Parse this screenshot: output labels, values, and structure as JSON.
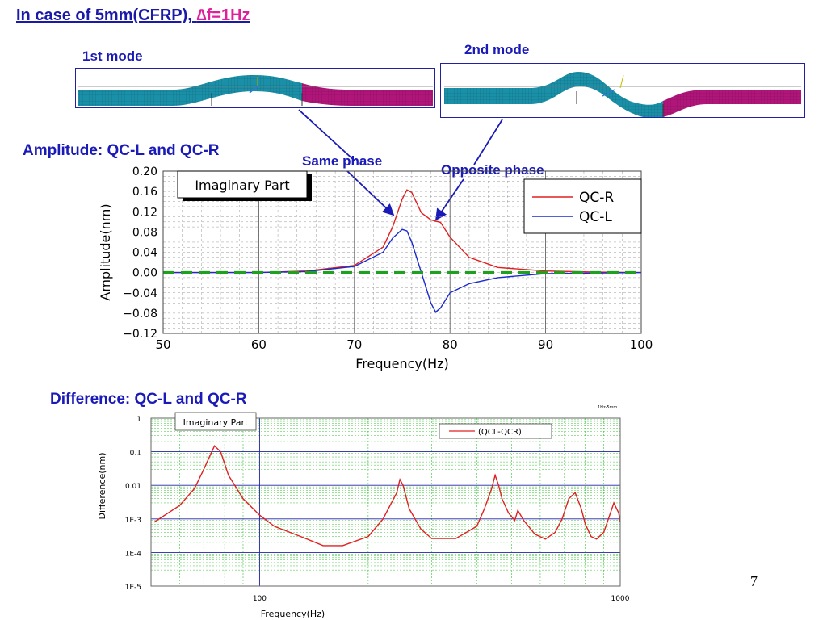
{
  "slide": {
    "title_prefix": "In case of 5mm(CFRP), ",
    "title_accent": "∆f=1Hz",
    "mode1_label": "1st mode",
    "mode2_label": "2nd mode",
    "section1": "Amplitude: QC-L and QC-R",
    "section2": "Difference: QC-L and QC-R",
    "same_phase": "Same phase",
    "opposite_phase": "Opposite phase",
    "page_number": "7",
    "colors": {
      "title": "#1a1aa8",
      "accent": "#e0209a",
      "beam_cyan": "#1a90a8",
      "beam_magenta": "#b0167a"
    }
  },
  "chart_data": [
    {
      "type": "line",
      "title": "Imaginary Part",
      "xlabel": "Frequency(Hz)",
      "ylabel": "Amplitude(nm)",
      "xlim": [
        50,
        100
      ],
      "ylim": [
        -0.12,
        0.2
      ],
      "xticks": [
        "50",
        "60",
        "70",
        "80",
        "90",
        "100"
      ],
      "yticks": [
        "0.20",
        "0.16",
        "0.12",
        "0.08",
        "0.04",
        "0.00",
        "−0.04",
        "−0.08",
        "−0.12"
      ],
      "grid": true,
      "legend_position": "top-right",
      "series": [
        {
          "name": "QC-R",
          "color": "#e02020",
          "x": [
            50,
            55,
            60,
            65,
            70,
            73,
            74,
            75,
            75.5,
            76,
            77,
            78,
            79,
            80,
            82,
            85,
            90,
            95,
            100
          ],
          "y": [
            0,
            0,
            0,
            0.003,
            0.014,
            0.05,
            0.09,
            0.145,
            0.163,
            0.158,
            0.118,
            0.104,
            0.099,
            0.07,
            0.03,
            0.01,
            0.003,
            0.001,
            0
          ]
        },
        {
          "name": "QC-L",
          "color": "#1a2ad0",
          "x": [
            50,
            60,
            65,
            70,
            73,
            74,
            75,
            75.5,
            76,
            77,
            78,
            78.5,
            79,
            80,
            82,
            85,
            90,
            100
          ],
          "y": [
            0,
            0,
            0.002,
            0.012,
            0.04,
            0.068,
            0.085,
            0.082,
            0.06,
            0.0,
            -0.06,
            -0.078,
            -0.07,
            -0.04,
            -0.022,
            -0.01,
            -0.002,
            0
          ]
        },
        {
          "name": "",
          "color": "#20a020",
          "dashed": true,
          "x": [
            50,
            100
          ],
          "y": [
            0,
            0
          ]
        }
      ]
    },
    {
      "type": "line",
      "title": "Imaginary Part",
      "corner_label": "1Hz-5mm",
      "xlabel": "Frequency(Hz)",
      "ylabel": "Difference(nm)",
      "xscale": "log",
      "yscale": "log",
      "xlim": [
        50,
        1000
      ],
      "ylim": [
        1e-05,
        1
      ],
      "xticks": [
        "100",
        "1000"
      ],
      "yticks": [
        "1",
        "0.1",
        "0.01",
        "1E-3",
        "1E-4",
        "1E-5"
      ],
      "grid": true,
      "legend_position": "top-right",
      "series": [
        {
          "name": "(QCL-QCR)",
          "color": "#e02020",
          "x": [
            51,
            60,
            66,
            70,
            73,
            75,
            78,
            82,
            90,
            100,
            110,
            130,
            150,
            170,
            200,
            220,
            240,
            245,
            250,
            260,
            280,
            300,
            350,
            400,
            420,
            440,
            450,
            460,
            470,
            490,
            510,
            520,
            540,
            580,
            620,
            660,
            690,
            720,
            750,
            780,
            800,
            830,
            860,
            900,
            960,
            990,
            1000
          ],
          "y": [
            0.0008,
            0.0025,
            0.008,
            0.03,
            0.08,
            0.15,
            0.1,
            0.02,
            0.004,
            0.0013,
            0.0006,
            0.0003,
            0.00016,
            0.00016,
            0.0003,
            0.001,
            0.006,
            0.015,
            0.01,
            0.002,
            0.0005,
            0.00026,
            0.00026,
            0.0006,
            0.002,
            0.008,
            0.02,
            0.01,
            0.004,
            0.0015,
            0.0009,
            0.0018,
            0.0009,
            0.00035,
            0.00025,
            0.0004,
            0.001,
            0.004,
            0.006,
            0.002,
            0.0007,
            0.0003,
            0.00025,
            0.0004,
            0.003,
            0.0015,
            0.0008
          ]
        }
      ]
    }
  ]
}
